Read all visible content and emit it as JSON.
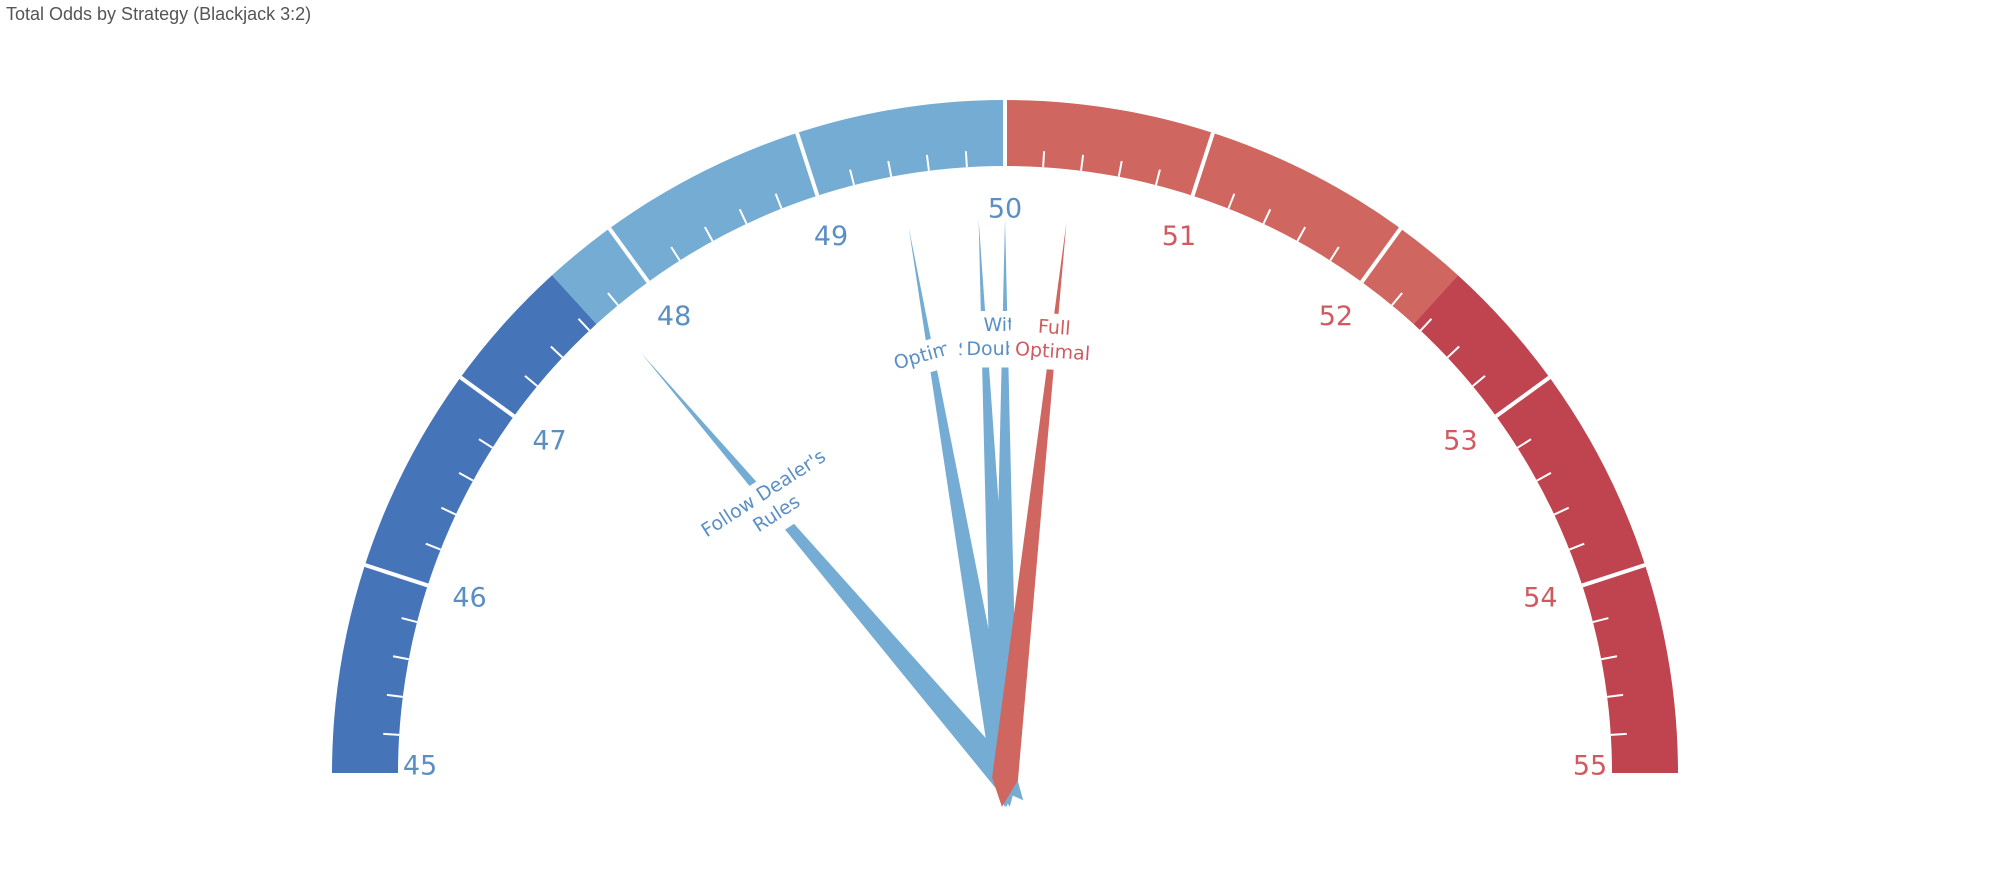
{
  "title": "Total Odds by Strategy (Blackjack 3:2)",
  "chart_data": {
    "type": "gauge",
    "title": "Total Odds by Strategy (Blackjack 3:2)",
    "range": [
      45,
      55
    ],
    "major_ticks": [
      "45",
      "46",
      "47",
      "48",
      "49",
      "50",
      "51",
      "52",
      "53",
      "54",
      "55"
    ],
    "minor_ticks_per_major": 5,
    "bands": [
      {
        "from": 45.0,
        "to": 47.65,
        "color": "#4575b8"
      },
      {
        "from": 47.65,
        "to": 50.0,
        "color": "#74acd3"
      },
      {
        "from": 50.0,
        "to": 52.35,
        "color": "#cf6660"
      },
      {
        "from": 52.35,
        "to": 55.0,
        "color": "#c0444f"
      }
    ],
    "needles": [
      {
        "label": "Follow Dealer's Rules",
        "value": 47.75,
        "color": "#74acd3"
      },
      {
        "label": "Optimal",
        "value": 49.45,
        "color": "#74acd3"
      },
      {
        "label": "With Splits",
        "value": 49.85,
        "color": "#74acd3"
      },
      {
        "label": "With Doubles",
        "value": 50.0,
        "color": "#74acd3"
      },
      {
        "label": "Full Optimal",
        "value": 50.35,
        "color": "#cf6660"
      }
    ],
    "label_color_blue": "#5b8fc4",
    "label_color_red": "#d05a5f"
  }
}
